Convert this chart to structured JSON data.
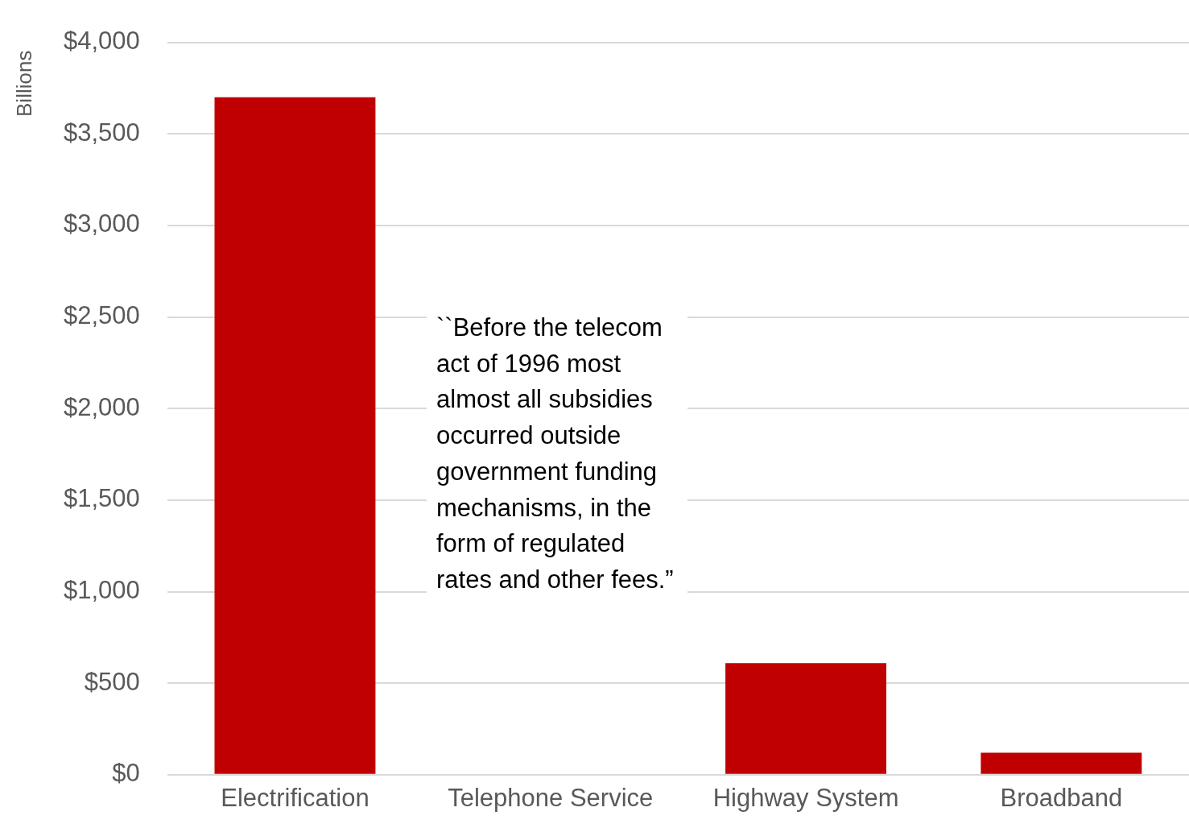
{
  "chart_data": {
    "type": "bar",
    "ylabel": "Billions",
    "categories": [
      "Electrification",
      "Telephone Service",
      "Highway System",
      "Broadband"
    ],
    "values": [
      3700,
      null,
      610,
      120
    ],
    "color": "#c00000",
    "ylim": [
      0,
      4000
    ],
    "yticks": [
      {
        "value": 0,
        "label": "$0"
      },
      {
        "value": 500,
        "label": "$500"
      },
      {
        "value": 1000,
        "label": "$1,000"
      },
      {
        "value": 1500,
        "label": "$1,500"
      },
      {
        "value": 2000,
        "label": "$2,000"
      },
      {
        "value": 2500,
        "label": "$2,500"
      },
      {
        "value": 3000,
        "label": "$3,000"
      },
      {
        "value": 3500,
        "label": "$3,500"
      },
      {
        "value": 4000,
        "label": "$4,000"
      }
    ],
    "grid": "y",
    "legend": false,
    "annotations": [
      "``Before the telecom act of 1996 most almost all subsidies occurred outside government funding mechanisms, in the form of regulated rates and other fees.”"
    ]
  }
}
